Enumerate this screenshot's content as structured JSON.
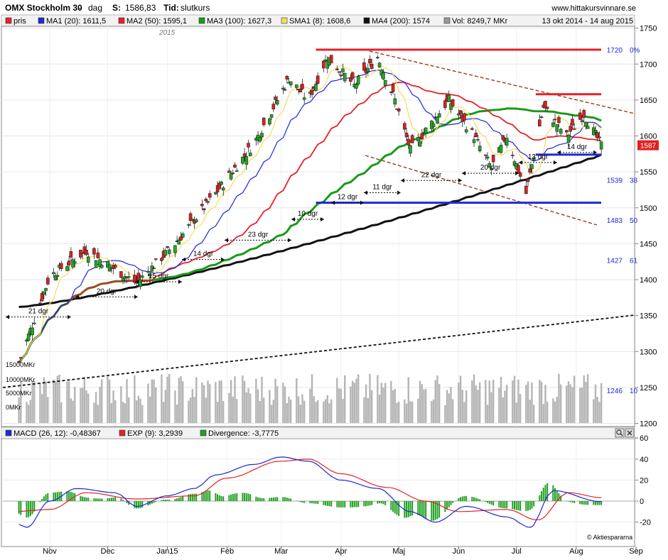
{
  "header": {
    "title": "OMX Stockholm 30",
    "sep": "-",
    "period": "dag",
    "s_label": "S:",
    "s_value": "1586,83",
    "tid_label": "Tid:",
    "tid_value": "slutkurs",
    "site": "www.hittakursvinnare.se"
  },
  "legend": {
    "items": [
      {
        "label": "pris",
        "color": "#e8202a"
      },
      {
        "label": "MA1 (20): 1611,5",
        "color": "#1d28d8"
      },
      {
        "label": "MA2 (50): 1595,1",
        "color": "#e8202a"
      },
      {
        "label": "MA3 (100): 1627,3",
        "color": "#1a9a1a"
      },
      {
        "label": "SMA1 (8): 1608,6",
        "color": "#f2de5a"
      },
      {
        "label": "MA4 (200): 1574",
        "color": "#111111"
      },
      {
        "label": "Vol: 8249,7 MKr",
        "color": "#999999"
      }
    ],
    "date_range": "13 okt 2014 - 14 aug 2015"
  },
  "year_label": "2015",
  "price_tag": "1587",
  "level_labels": [
    {
      "text": "1720",
      "suffix": "0%"
    },
    {
      "text": "1539",
      "suffix": "38"
    },
    {
      "text": "1483",
      "suffix": "50"
    },
    {
      "text": "1427",
      "suffix": "61"
    },
    {
      "text": "1246",
      "suffix": "10"
    }
  ],
  "volume_labels": [
    "15000MKr",
    "10000MKr",
    "5000MKr",
    "0MKr"
  ],
  "count_labels": [
    "21 dgr",
    "20 dgr",
    "15 dgr",
    "14 dgr",
    "23 dgr",
    "10 dgr",
    "12 dgr",
    "11 dgr",
    "22 dgr",
    "20 dgr",
    "13 dgr",
    "14 dgr"
  ],
  "macd_legend": {
    "items": [
      {
        "label": "MACD (26, 12): -0,48367",
        "color": "#1d28d8"
      },
      {
        "label": "EXP (9): 3,2939",
        "color": "#e8202a"
      },
      {
        "label": "Divergence: -3,7775",
        "color": "#20a020"
      }
    ]
  },
  "credit": "© Aktiespararna",
  "x_months": [
    "Nov",
    "Dec",
    "Jan15",
    "Feb",
    "Mar",
    "Apr",
    "Maj",
    "Jun",
    "Jul",
    "Aug",
    "Sep"
  ],
  "chart_data": [
    {
      "type": "candlestick",
      "title": "OMX Stockholm 30",
      "y_ticks": [
        1200,
        1250,
        1300,
        1350,
        1400,
        1450,
        1500,
        1550,
        1600,
        1650,
        1700,
        1750
      ],
      "ylim": [
        1195,
        1760
      ],
      "x_range": [
        "2014-10-13",
        "2015-08-14"
      ],
      "last_close": 1586.83,
      "closes_approx": [
        {
          "date": "2014-10-16",
          "close": 1285
        },
        {
          "date": "2014-11-01",
          "close": 1405
        },
        {
          "date": "2014-11-20",
          "close": 1440
        },
        {
          "date": "2014-12-16",
          "close": 1395
        },
        {
          "date": "2015-01-05",
          "close": 1450
        },
        {
          "date": "2015-01-26",
          "close": 1520
        },
        {
          "date": "2015-02-15",
          "close": 1590
        },
        {
          "date": "2015-03-05",
          "close": 1680
        },
        {
          "date": "2015-03-15",
          "close": 1650
        },
        {
          "date": "2015-03-25",
          "close": 1710
        },
        {
          "date": "2015-04-08",
          "close": 1670
        },
        {
          "date": "2015-04-20",
          "close": 1710
        },
        {
          "date": "2015-04-29",
          "close": 1650
        },
        {
          "date": "2015-05-07",
          "close": 1580
        },
        {
          "date": "2015-05-27",
          "close": 1650
        },
        {
          "date": "2015-06-09",
          "close": 1600
        },
        {
          "date": "2015-06-18",
          "close": 1555
        },
        {
          "date": "2015-06-26",
          "close": 1600
        },
        {
          "date": "2015-07-06",
          "close": 1520
        },
        {
          "date": "2015-07-15",
          "close": 1640
        },
        {
          "date": "2015-07-27",
          "close": 1600
        },
        {
          "date": "2015-08-05",
          "close": 1630
        },
        {
          "date": "2015-08-14",
          "close": 1587
        }
      ],
      "horizontal_levels": [
        {
          "value": 1720,
          "color": "#e8202a",
          "from": "2015-03-19",
          "to": "2015-08-31"
        },
        {
          "value": 1658,
          "color": "#e8202a",
          "from": "2015-07-11",
          "to": "2015-08-31"
        },
        {
          "value": 1574,
          "color": "#1d28d8",
          "from": "2015-07-11",
          "to": "2015-08-31"
        },
        {
          "value": 1507,
          "color": "#1d28d8",
          "from": "2015-03-19",
          "to": "2015-08-31"
        }
      ],
      "series": [
        {
          "name": "MA1 (20)",
          "last": 1611.5
        },
        {
          "name": "MA2 (50)",
          "last": 1595.1
        },
        {
          "name": "MA3 (100)",
          "last": 1627.3
        },
        {
          "name": "SMA1 (8)",
          "last": 1608.6
        },
        {
          "name": "MA4 (200)",
          "last": 1574
        }
      ],
      "volume_ticks_mkr": [
        15000,
        10000,
        5000,
        0
      ],
      "volume_last_mkr": 8249.7
    },
    {
      "type": "line",
      "title": "MACD (26, 12)",
      "y_ticks": [
        60,
        40,
        20,
        0,
        -20
      ],
      "ylim": [
        -35,
        65
      ],
      "series": [
        {
          "name": "MACD (26, 12)",
          "last": -0.48367,
          "points": [
            {
              "date": "2014-10-13",
              "value": -20
            },
            {
              "date": "2014-10-20",
              "value": -25
            },
            {
              "date": "2014-11-01",
              "value": 0
            },
            {
              "date": "2014-11-15",
              "value": 12
            },
            {
              "date": "2014-12-05",
              "value": 8
            },
            {
              "date": "2014-12-16",
              "value": -5
            },
            {
              "date": "2015-01-01",
              "value": 5
            },
            {
              "date": "2015-01-15",
              "value": 12
            },
            {
              "date": "2015-01-26",
              "value": 25
            },
            {
              "date": "2015-02-15",
              "value": 35
            },
            {
              "date": "2015-03-01",
              "value": 42
            },
            {
              "date": "2015-03-15",
              "value": 38
            },
            {
              "date": "2015-04-01",
              "value": 20
            },
            {
              "date": "2015-04-20",
              "value": 12
            },
            {
              "date": "2015-05-07",
              "value": -10
            },
            {
              "date": "2015-05-20",
              "value": -20
            },
            {
              "date": "2015-06-05",
              "value": -5
            },
            {
              "date": "2015-06-26",
              "value": -15
            },
            {
              "date": "2015-07-08",
              "value": -25
            },
            {
              "date": "2015-07-20",
              "value": 10
            },
            {
              "date": "2015-08-14",
              "value": -0.48
            }
          ]
        },
        {
          "name": "EXP (9)",
          "last": 3.2939,
          "points": [
            {
              "date": "2014-10-13",
              "value": -10
            },
            {
              "date": "2014-11-01",
              "value": -8
            },
            {
              "date": "2014-11-20",
              "value": 8
            },
            {
              "date": "2014-12-16",
              "value": 2
            },
            {
              "date": "2015-01-15",
              "value": 5
            },
            {
              "date": "2015-02-01",
              "value": 22
            },
            {
              "date": "2015-03-01",
              "value": 38
            },
            {
              "date": "2015-03-15",
              "value": 40
            },
            {
              "date": "2015-04-01",
              "value": 26
            },
            {
              "date": "2015-04-25",
              "value": 13
            },
            {
              "date": "2015-05-15",
              "value": 0
            },
            {
              "date": "2015-06-01",
              "value": -10
            },
            {
              "date": "2015-06-26",
              "value": -8
            },
            {
              "date": "2015-07-12",
              "value": -18
            },
            {
              "date": "2015-07-28",
              "value": 8
            },
            {
              "date": "2015-08-14",
              "value": 3.29
            }
          ]
        },
        {
          "name": "Divergence",
          "last": -3.7775
        }
      ]
    }
  ]
}
